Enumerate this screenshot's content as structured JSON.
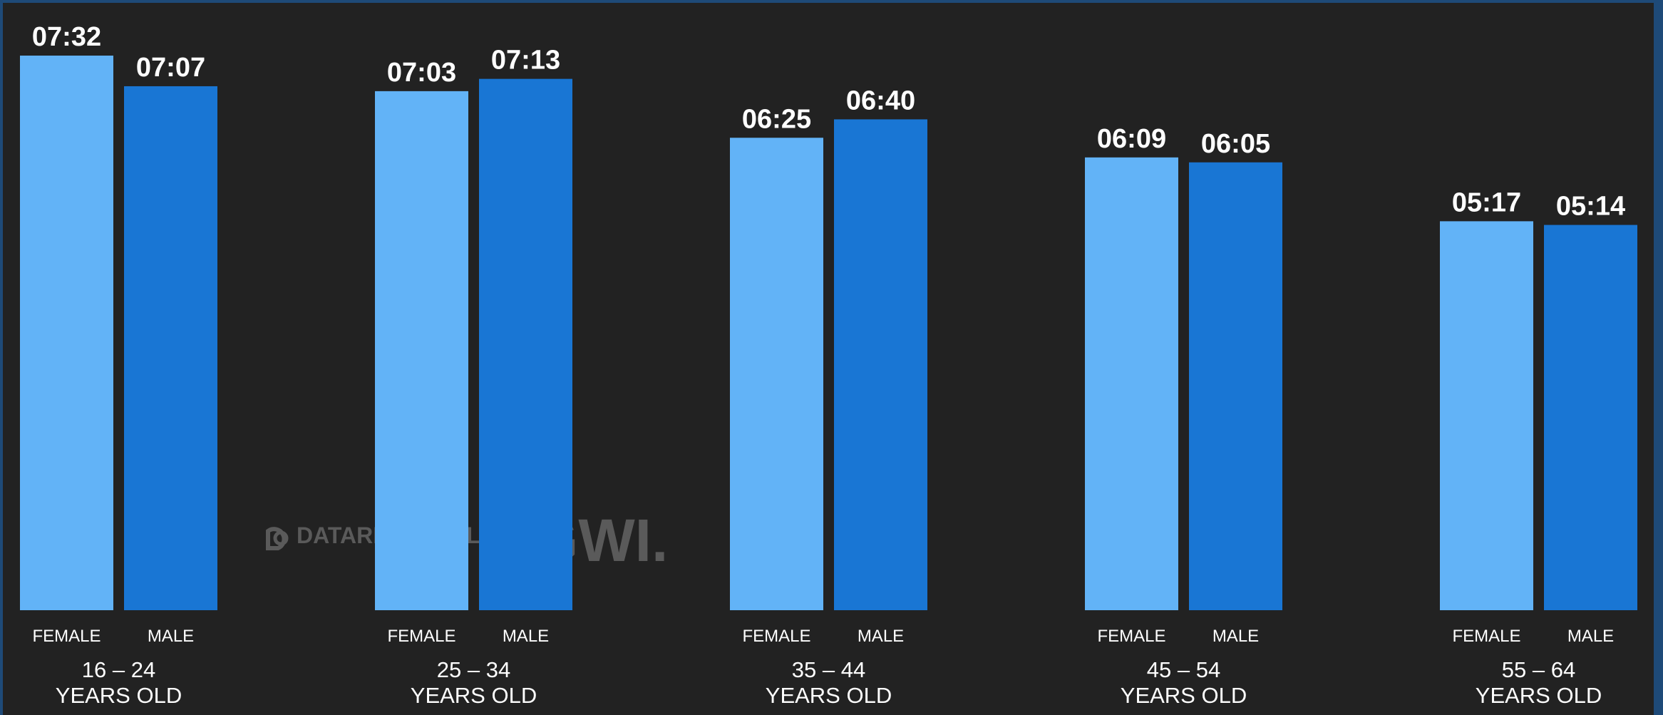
{
  "chart_data": {
    "type": "bar",
    "categories": [
      "16 – 24",
      "25 – 34",
      "35 – 44",
      "45 – 54",
      "55 – 64"
    ],
    "category_suffix": "YEARS OLD",
    "series": [
      {
        "name": "FEMALE",
        "color": "#62b3f7",
        "values": [
          7.533,
          7.05,
          6.417,
          6.15,
          5.283
        ],
        "labels": [
          "07:32",
          "07:03",
          "06:25",
          "06:09",
          "05:17"
        ]
      },
      {
        "name": "MALE",
        "color": "#1976d4",
        "values": [
          7.117,
          7.217,
          6.667,
          6.083,
          5.233
        ],
        "labels": [
          "07:07",
          "07:13",
          "06:40",
          "06:05",
          "05:14"
        ]
      }
    ],
    "ylim": [
      0,
      7.533
    ],
    "grid": false,
    "legend": "none"
  },
  "watermark": {
    "brand1": "DATAREPORTAL",
    "brand2": "GWI."
  }
}
